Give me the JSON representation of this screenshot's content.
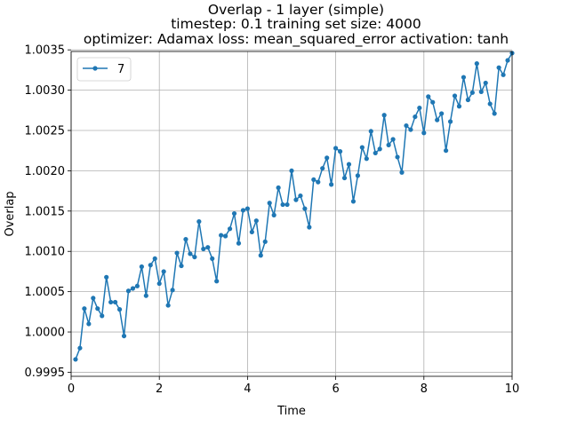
{
  "chart_data": {
    "type": "line",
    "title_lines": [
      "Overlap - 1 layer (simple)",
      "timestep: 0.1 training set size: 4000",
      "optimizer: Adamax loss: mean_squared_error activation: tanh"
    ],
    "xlabel": "Time",
    "ylabel": "Overlap",
    "xlim": [
      0,
      10
    ],
    "ylim": [
      0.99945,
      1.00348
    ],
    "xticks": [
      0,
      2,
      4,
      6,
      8,
      10
    ],
    "xtick_labels": [
      "0",
      "2",
      "4",
      "6",
      "8",
      "10"
    ],
    "yticks": [
      0.9995,
      1.0,
      1.0005,
      1.001,
      1.0015,
      1.002,
      1.0025,
      1.003,
      1.0035
    ],
    "ytick_labels": [
      "0.9995",
      "1.0000",
      "1.0005",
      "1.0010",
      "1.0015",
      "1.0020",
      "1.0025",
      "1.0030",
      "1.0035"
    ],
    "grid": true,
    "legend_position": "upper-left",
    "series": [
      {
        "name": "7",
        "color": "#1f77b4",
        "marker": "circle",
        "x": [
          0.1,
          0.2,
          0.3,
          0.4,
          0.5,
          0.6,
          0.7,
          0.8,
          0.9,
          1.0,
          1.1,
          1.2,
          1.3,
          1.4,
          1.5,
          1.6,
          1.7,
          1.8,
          1.9,
          2.0,
          2.1,
          2.2,
          2.3,
          2.4,
          2.5,
          2.6,
          2.7,
          2.8,
          2.9,
          3.0,
          3.1,
          3.2,
          3.3,
          3.4,
          3.5,
          3.6,
          3.7,
          3.8,
          3.9,
          4.0,
          4.1,
          4.2,
          4.3,
          4.4,
          4.5,
          4.6,
          4.7,
          4.8,
          4.9,
          5.0,
          5.1,
          5.2,
          5.3,
          5.4,
          5.5,
          5.6,
          5.7,
          5.8,
          5.9,
          6.0,
          6.1,
          6.2,
          6.3,
          6.4,
          6.5,
          6.6,
          6.7,
          6.8,
          6.9,
          7.0,
          7.1,
          7.2,
          7.3,
          7.4,
          7.5,
          7.6,
          7.7,
          7.8,
          7.9,
          8.0,
          8.1,
          8.2,
          8.3,
          8.4,
          8.5,
          8.6,
          8.7,
          8.8,
          8.9,
          9.0,
          9.1,
          9.2,
          9.3,
          9.4,
          9.5,
          9.6,
          9.7,
          9.8,
          9.9,
          10.0
        ],
        "y": [
          0.99966,
          0.9998,
          1.00029,
          1.0001,
          1.00042,
          1.00029,
          1.0002,
          1.00068,
          1.00037,
          1.00037,
          1.00028,
          0.99995,
          1.00051,
          1.00054,
          1.00057,
          1.00081,
          1.00045,
          1.00083,
          1.00091,
          1.0006,
          1.00075,
          1.00033,
          1.00052,
          1.00098,
          1.00082,
          1.00115,
          1.00097,
          1.00093,
          1.00137,
          1.00103,
          1.00105,
          1.00091,
          1.00063,
          1.0012,
          1.00119,
          1.00128,
          1.00147,
          1.0011,
          1.00151,
          1.00153,
          1.00124,
          1.00138,
          1.00095,
          1.00112,
          1.0016,
          1.00145,
          1.00179,
          1.00158,
          1.00158,
          1.002,
          1.00164,
          1.00169,
          1.00153,
          1.0013,
          1.00189,
          1.00186,
          1.00203,
          1.00216,
          1.00183,
          1.00228,
          1.00224,
          1.00191,
          1.00208,
          1.00162,
          1.00194,
          1.00229,
          1.00215,
          1.00249,
          1.00222,
          1.00227,
          1.00269,
          1.00232,
          1.00239,
          1.00217,
          1.00198,
          1.00256,
          1.00251,
          1.00267,
          1.00278,
          1.00247,
          1.00292,
          1.00285,
          1.00263,
          1.00271,
          1.00225,
          1.00261,
          1.00293,
          1.0028,
          1.00316,
          1.00288,
          1.00297,
          1.00333,
          1.00298,
          1.00309,
          1.00283,
          1.00271,
          1.00328,
          1.00319,
          1.00337,
          1.00346
        ]
      }
    ]
  }
}
